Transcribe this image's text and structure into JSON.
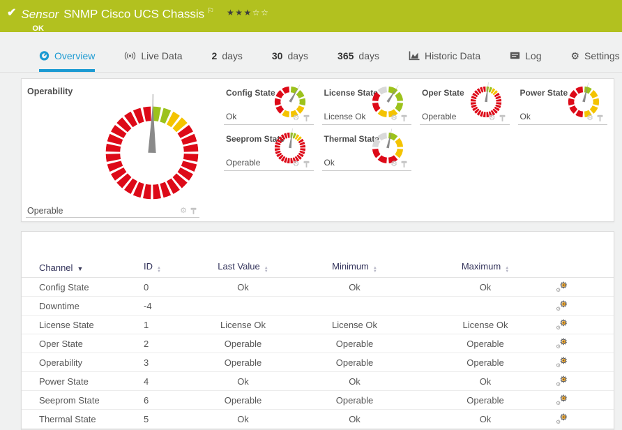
{
  "colors": {
    "status_ok": "#b2c11f",
    "accent_blue": "#1b9ad2",
    "gauge_red": "#dd0a18",
    "gauge_green": "#9cc21c",
    "gauge_yellow": "#f4c300",
    "gauge_gray": "#d9d9d9",
    "gauge_needle": "#8a8a8a",
    "table_header_text": "#32325a"
  },
  "icons": {
    "check": "✔",
    "flag": "⚐",
    "star_filled": "★",
    "star_empty": "☆",
    "gear": "⚙",
    "sort_up": "▲",
    "sort_down": "▼"
  },
  "header": {
    "kind_label": "Sensor",
    "title": "SNMP Cisco UCS Chassis",
    "status": "OK",
    "rating": {
      "filled": 3,
      "total": 5
    }
  },
  "tabs": [
    {
      "label": "Overview",
      "icon": "gauge-icon",
      "active": true
    },
    {
      "label": "Live Data",
      "icon": "broadcast-icon"
    },
    {
      "prefix": "2",
      "label": "days"
    },
    {
      "prefix": "30",
      "label": "days"
    },
    {
      "prefix": "365",
      "label": "days"
    },
    {
      "label": "Historic Data",
      "icon": "chart-icon"
    },
    {
      "label": "Log",
      "icon": "log-icon"
    },
    {
      "label": "Settings",
      "icon": "gear-icon"
    }
  ],
  "gauges": {
    "large": {
      "label": "Operability",
      "value": "Operable",
      "segments": [
        [
          "green",
          2
        ],
        [
          "yellow",
          2
        ],
        [
          "red",
          24
        ]
      ],
      "needle_deg": 1,
      "gap": 3.2,
      "inner": 0.69
    },
    "small": [
      {
        "label": "Config State",
        "value": "Ok",
        "segments": [
          [
            "green",
            3
          ],
          [
            "yellow",
            3
          ],
          [
            "red",
            4
          ]
        ],
        "needle_deg": 30,
        "gap": 8,
        "inner": 0.62
      },
      {
        "label": "License State",
        "value": "License Ok",
        "segments": [
          [
            "green",
            3
          ],
          [
            "yellow",
            2
          ],
          [
            "red",
            2
          ],
          [
            "gray",
            1
          ]
        ],
        "needle_deg": 33,
        "gap": 9,
        "inner": 0.62
      },
      {
        "label": "Oper State",
        "value": "Operable",
        "segments": [
          [
            "green",
            2
          ],
          [
            "yellow",
            2
          ],
          [
            "red",
            24
          ]
        ],
        "needle_deg": 7,
        "gap": 3.5,
        "inner": 0.66
      },
      {
        "label": "Power State",
        "value": "Ok",
        "segments": [
          [
            "green",
            1
          ],
          [
            "yellow",
            4
          ],
          [
            "red",
            5
          ]
        ],
        "needle_deg": 14,
        "gap": 8,
        "inner": 0.62
      },
      {
        "label": "Seeprom State",
        "value": "Operable",
        "segments": [
          [
            "green",
            2
          ],
          [
            "yellow",
            2
          ],
          [
            "red",
            24
          ]
        ],
        "needle_deg": 7,
        "gap": 3.5,
        "inner": 0.66
      },
      {
        "label": "Thermal State",
        "value": "Ok",
        "segments": [
          [
            "green",
            1
          ],
          [
            "yellow",
            2
          ],
          [
            "red",
            3
          ],
          [
            "gray",
            2
          ]
        ],
        "needle_deg": 12,
        "gap": 9,
        "inner": 0.62
      }
    ]
  },
  "table": {
    "columns": [
      {
        "label": "Channel",
        "sort": "desc"
      },
      {
        "label": "ID",
        "sort": "both"
      },
      {
        "label": "Last Value",
        "sort": "both"
      },
      {
        "label": "Minimum",
        "sort": "both"
      },
      {
        "label": "Maximum",
        "sort": "both"
      }
    ],
    "rows": [
      {
        "channel": "Config State",
        "id": "0",
        "last": "Ok",
        "min": "Ok",
        "max": "Ok"
      },
      {
        "channel": "Downtime",
        "id": "-4",
        "last": "",
        "min": "",
        "max": ""
      },
      {
        "channel": "License State",
        "id": "1",
        "last": "License Ok",
        "min": "License Ok",
        "max": "License Ok"
      },
      {
        "channel": "Oper State",
        "id": "2",
        "last": "Operable",
        "min": "Operable",
        "max": "Operable"
      },
      {
        "channel": "Operability",
        "id": "3",
        "last": "Operable",
        "min": "Operable",
        "max": "Operable"
      },
      {
        "channel": "Power State",
        "id": "4",
        "last": "Ok",
        "min": "Ok",
        "max": "Ok"
      },
      {
        "channel": "Seeprom State",
        "id": "6",
        "last": "Operable",
        "min": "Operable",
        "max": "Operable"
      },
      {
        "channel": "Thermal State",
        "id": "5",
        "last": "Ok",
        "min": "Ok",
        "max": "Ok"
      }
    ]
  }
}
